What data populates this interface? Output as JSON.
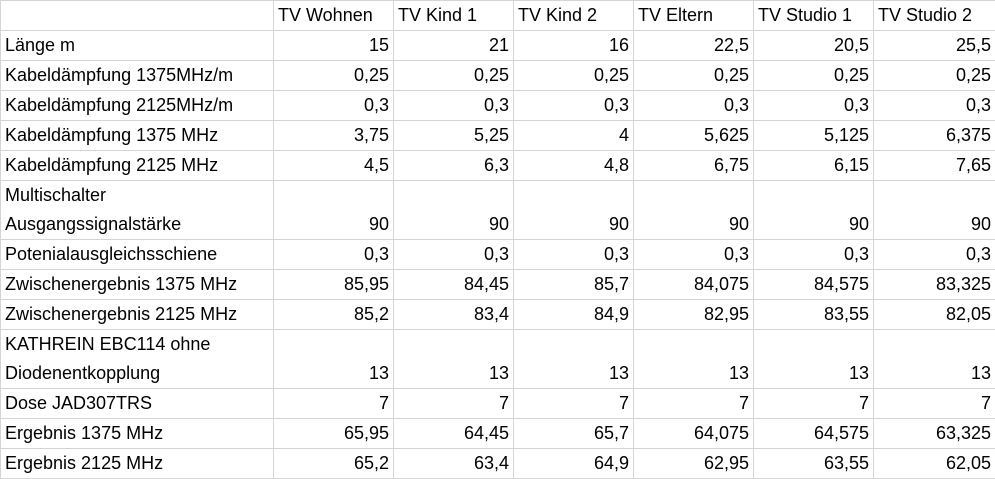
{
  "table": {
    "columns": [
      "TV Wohnen",
      "TV Kind 1",
      "TV Kind 2",
      "TV Eltern",
      "TV Studio 1",
      "TV Studio 2"
    ],
    "rows": [
      [
        "Länge m",
        "15",
        "21",
        "16",
        "22,5",
        "20,5",
        "25,5"
      ],
      [
        "Kabeldämpfung 1375MHz/m",
        "0,25",
        "0,25",
        "0,25",
        "0,25",
        "0,25",
        "0,25"
      ],
      [
        "Kabeldämpfung 2125MHz/m",
        "0,3",
        "0,3",
        "0,3",
        "0,3",
        "0,3",
        "0,3"
      ],
      [
        "Kabeldämpfung 1375 MHz",
        "3,75",
        "5,25",
        "4",
        "5,625",
        "5,125",
        "6,375"
      ],
      [
        "Kabeldämpfung 2125 MHz",
        "4,5",
        "6,3",
        "4,8",
        "6,75",
        "6,15",
        "7,65"
      ],
      [
        "Multischalter Ausgangssignalstärke",
        "90",
        "90",
        "90",
        "90",
        "90",
        "90"
      ],
      [
        "Potenialausgleichsschiene",
        "0,3",
        "0,3",
        "0,3",
        "0,3",
        "0,3",
        "0,3"
      ],
      [
        "Zwischenergebnis 1375 MHz",
        "85,95",
        "84,45",
        "85,7",
        "84,075",
        "84,575",
        "83,325"
      ],
      [
        "Zwischenergebnis 2125 MHz",
        "85,2",
        "83,4",
        "84,9",
        "82,95",
        "83,55",
        "82,05"
      ],
      [
        "KATHREIN EBC114 ohne Diodenentkopplung",
        "13",
        "13",
        "13",
        "13",
        "13",
        "13"
      ],
      [
        "Dose JAD307TRS",
        "7",
        "7",
        "7",
        "7",
        "7",
        "7"
      ],
      [
        "Ergebnis 1375 MHz",
        "65,95",
        "64,45",
        "65,7",
        "64,075",
        "64,575",
        "63,325"
      ],
      [
        "Ergebnis 2125 MHz",
        "65,2",
        "63,4",
        "64,9",
        "62,95",
        "63,55",
        "62,05"
      ]
    ]
  }
}
